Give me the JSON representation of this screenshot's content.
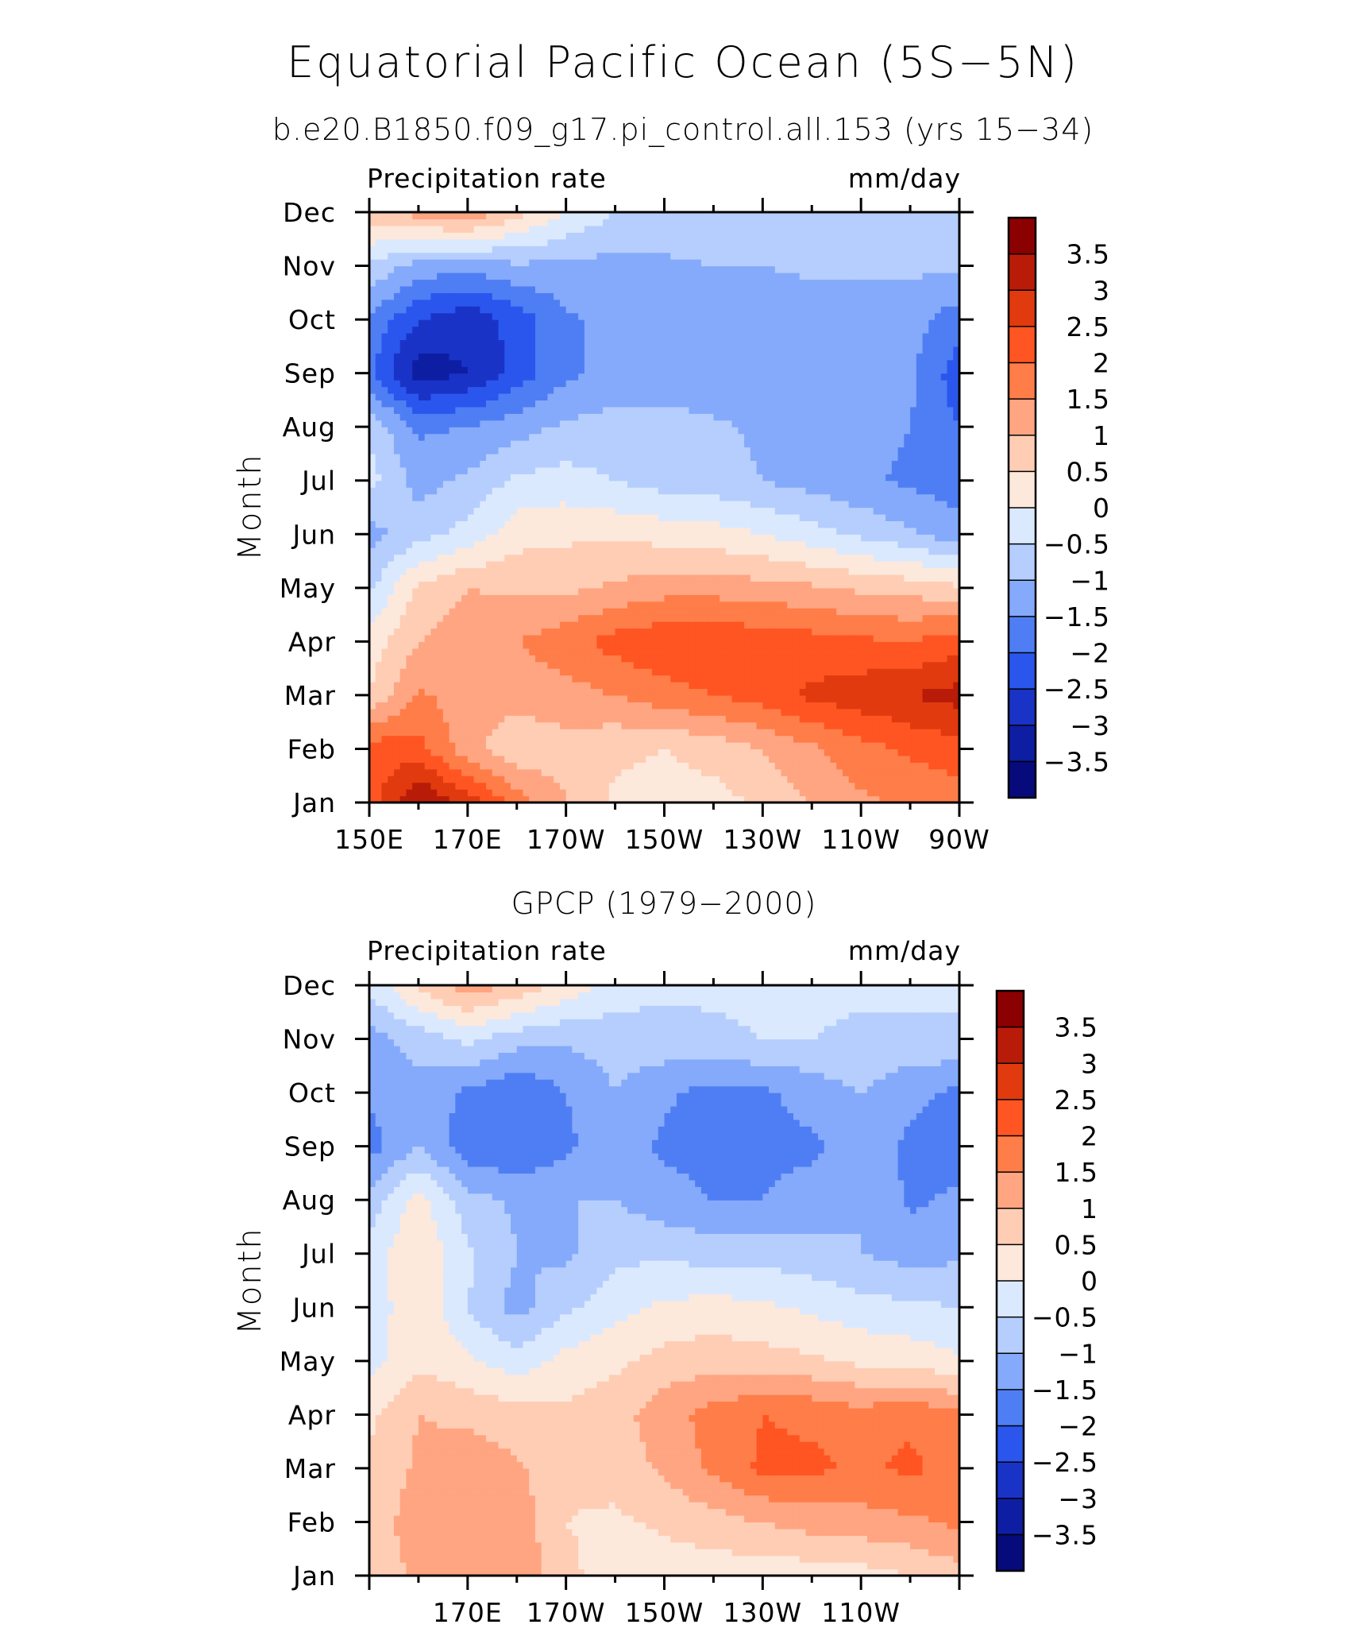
{
  "figure": {
    "title": "Equatorial Pacific Ocean (5S−5N)"
  },
  "colorbar_levels": [
    "3.5",
    "3",
    "2.5",
    "2",
    "1.5",
    "1",
    "0.5",
    "0",
    "−0.5",
    "−1",
    "−1.5",
    "−2",
    "−2.5",
    "−3",
    "−3.5"
  ],
  "colorbar_colors": [
    "#8b0000",
    "#b81c08",
    "#e03a0e",
    "#ff5522",
    "#ff7d48",
    "#ffa582",
    "#ffcdb4",
    "#fde8dc",
    "#dbe9fe",
    "#b5cefd",
    "#85aafb",
    "#4f7ef4",
    "#2a56ee",
    "#1a33c7",
    "#0d1ea3",
    "#060a7a"
  ],
  "chart_data": [
    {
      "type": "heatmap",
      "title": "b.e20.B1850.f09_g17.pi_control.all.153 (yrs 15−34)",
      "left_label": "Precipitation rate",
      "right_label": "mm/day",
      "xlabel": "",
      "ylabel": "Month",
      "x_tick_labels": [
        "150E",
        "170E",
        "170W",
        "150W",
        "130W",
        "110W",
        "90W"
      ],
      "y_tick_labels": [
        "Jan",
        "Feb",
        "Mar",
        "Apr",
        "May",
        "Jun",
        "Jul",
        "Aug",
        "Sep",
        "Oct",
        "Nov",
        "Dec"
      ],
      "x": [
        "150E",
        "160E",
        "170E",
        "180",
        "170W",
        "160W",
        "150W",
        "140W",
        "130W",
        "120W",
        "110W",
        "100W",
        "90W"
      ],
      "y": [
        "Jan",
        "Feb",
        "Mar",
        "Apr",
        "May",
        "Jun",
        "Jul",
        "Aug",
        "Sep",
        "Oct",
        "Nov",
        "Dec"
      ],
      "z": [
        [
          2.2,
          3.6,
          2.8,
          1.8,
          1.0,
          0.4,
          0.3,
          0.3,
          0.6,
          1.0,
          1.4,
          1.6,
          1.7
        ],
        [
          2.3,
          2.2,
          1.2,
          0.6,
          0.8,
          0.6,
          0.5,
          0.7,
          1.0,
          1.4,
          1.8,
          2.1,
          2.3
        ],
        [
          0.5,
          1.6,
          1.2,
          1.2,
          1.3,
          1.5,
          1.8,
          2.0,
          2.2,
          2.6,
          2.8,
          3.0,
          3.2
        ],
        [
          0.2,
          1.0,
          1.3,
          1.5,
          1.8,
          2.2,
          2.4,
          2.4,
          2.3,
          2.2,
          2.1,
          2.0,
          2.3
        ],
        [
          -0.6,
          0.6,
          1.0,
          0.9,
          0.9,
          1.1,
          1.3,
          1.3,
          1.2,
          1.1,
          0.9,
          0.8,
          0.6
        ],
        [
          -1.2,
          -0.7,
          -0.3,
          0.3,
          0.4,
          0.4,
          0.3,
          0.2,
          0.0,
          -0.3,
          -0.6,
          -0.9,
          -1.3
        ],
        [
          -0.3,
          -1.2,
          -0.9,
          -0.4,
          -0.3,
          -0.5,
          -0.7,
          -0.8,
          -1.0,
          -1.2,
          -1.4,
          -1.6,
          -1.8
        ],
        [
          -0.6,
          -1.6,
          -1.5,
          -1.2,
          -0.9,
          -0.8,
          -0.8,
          -0.9,
          -1.1,
          -1.2,
          -1.3,
          -1.5,
          -2.0
        ],
        [
          -1.9,
          -3.3,
          -3.0,
          -2.3,
          -1.6,
          -1.3,
          -1.3,
          -1.4,
          -1.4,
          -1.4,
          -1.4,
          -1.4,
          -2.3
        ],
        [
          -1.6,
          -2.5,
          -2.9,
          -2.3,
          -1.6,
          -1.3,
          -1.3,
          -1.3,
          -1.3,
          -1.3,
          -1.3,
          -1.3,
          -1.8
        ],
        [
          -0.6,
          -1.2,
          -1.3,
          -1.1,
          -1.1,
          -1.2,
          -1.1,
          -1.0,
          -1.0,
          -0.9,
          -0.9,
          -0.9,
          -0.9
        ],
        [
          0.8,
          1.2,
          1.4,
          0.7,
          0.0,
          -0.5,
          -0.6,
          -0.6,
          -0.6,
          -0.6,
          -0.6,
          -0.6,
          -0.7
        ]
      ]
    },
    {
      "type": "heatmap",
      "title": "GPCP (1979−2000)",
      "left_label": "Precipitation rate",
      "right_label": "mm/day",
      "xlabel": "",
      "ylabel": "Month",
      "x_tick_labels": [
        "170E",
        "170W",
        "150W",
        "130W",
        "110W"
      ],
      "y_tick_labels": [
        "Jan",
        "Feb",
        "Mar",
        "Apr",
        "May",
        "Jun",
        "Jul",
        "Aug",
        "Sep",
        "Oct",
        "Nov",
        "Dec"
      ],
      "x": [
        "150E",
        "160E",
        "170E",
        "180",
        "170W",
        "160W",
        "150W",
        "140W",
        "130W",
        "120W",
        "110W",
        "100W",
        "90W"
      ],
      "y": [
        "Jan",
        "Feb",
        "Mar",
        "Apr",
        "May",
        "Jun",
        "Jul",
        "Aug",
        "Sep",
        "Oct",
        "Nov",
        "Dec"
      ],
      "z": [
        [
          0.7,
          1.1,
          1.3,
          1.5,
          0.6,
          0.3,
          0.2,
          0.2,
          0.2,
          0.2,
          0.3,
          0.5,
          0.8
        ],
        [
          0.8,
          1.2,
          1.0,
          1.3,
          0.5,
          0.4,
          0.6,
          0.8,
          1.0,
          1.2,
          1.3,
          1.4,
          1.6
        ],
        [
          0.6,
          1.1,
          1.3,
          1.1,
          0.6,
          0.7,
          1.1,
          1.6,
          2.1,
          2.1,
          1.9,
          2.1,
          1.8
        ],
        [
          0.4,
          1.0,
          0.9,
          0.7,
          0.6,
          0.8,
          1.3,
          1.7,
          2.0,
          1.9,
          1.7,
          1.9,
          1.6
        ],
        [
          -0.2,
          0.4,
          0.1,
          -0.3,
          0.2,
          0.4,
          0.7,
          0.8,
          0.7,
          0.6,
          0.4,
          0.3,
          0.1
        ],
        [
          -0.4,
          0.5,
          -0.5,
          -1.2,
          -0.6,
          -0.2,
          0.1,
          0.2,
          0.1,
          -0.1,
          -0.3,
          -0.4,
          -0.5
        ],
        [
          -0.3,
          0.5,
          -0.4,
          -1.0,
          -1.1,
          -0.6,
          -0.6,
          -0.7,
          -0.7,
          -0.8,
          -1.0,
          -1.2,
          -1.1
        ],
        [
          -0.8,
          0.2,
          -0.8,
          -1.1,
          -1.0,
          -1.0,
          -1.3,
          -1.5,
          -1.5,
          -1.3,
          -1.0,
          -1.6,
          -1.4
        ],
        [
          -1.7,
          -1.0,
          -1.8,
          -2.0,
          -1.6,
          -1.2,
          -1.6,
          -1.7,
          -1.6,
          -1.6,
          -1.2,
          -1.6,
          -1.7
        ],
        [
          -1.4,
          -1.2,
          -1.6,
          -2.0,
          -1.5,
          -1.0,
          -1.4,
          -1.7,
          -1.6,
          -1.3,
          -1.0,
          -1.4,
          -1.6
        ],
        [
          -1.2,
          -0.8,
          -0.4,
          -0.8,
          -0.9,
          -0.8,
          -0.7,
          -0.6,
          -0.5,
          -0.5,
          -0.6,
          -0.6,
          -0.6
        ],
        [
          -0.4,
          0.6,
          1.3,
          0.9,
          0.3,
          -0.2,
          -0.4,
          -0.4,
          -0.4,
          -0.4,
          -0.4,
          -0.4,
          -0.4
        ]
      ]
    }
  ]
}
